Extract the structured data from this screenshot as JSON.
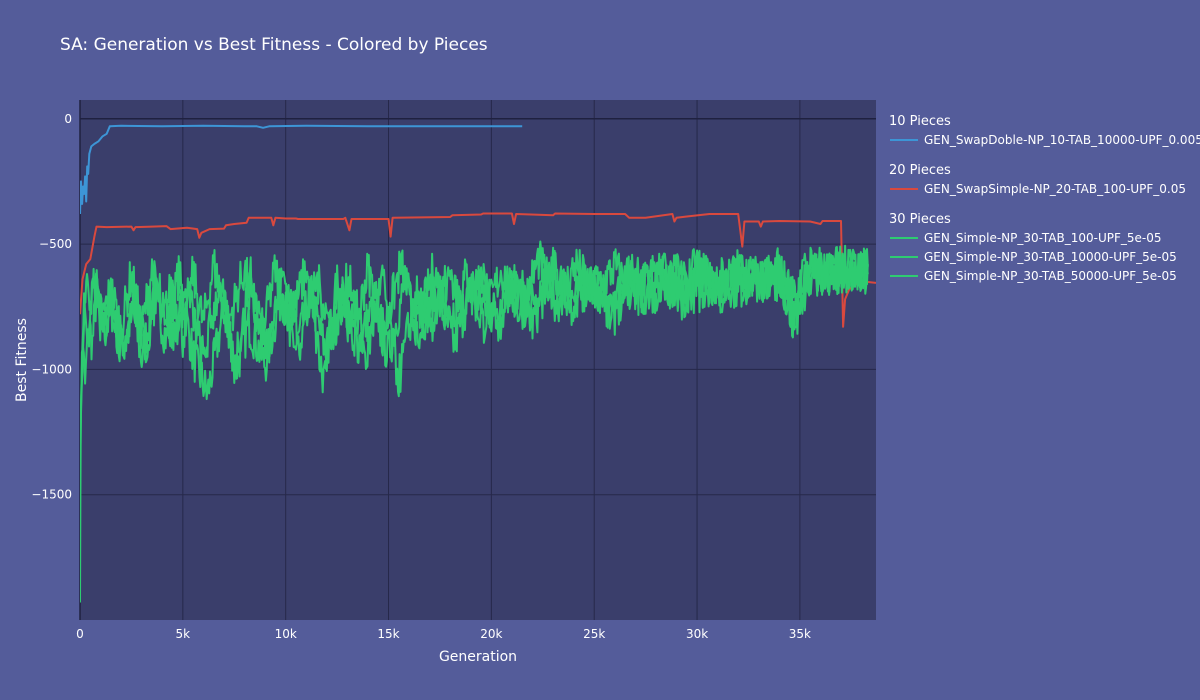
{
  "chart_data": {
    "type": "line",
    "title": "SA: Generation vs Best Fitness - Colored by Pieces",
    "xlabel": "Generation",
    "ylabel": "Best Fitness",
    "xlim": [
      0,
      38700
    ],
    "ylim": [
      -2000,
      75
    ],
    "x_ticks": [
      {
        "value": 0,
        "label": "0"
      },
      {
        "value": 5000,
        "label": "5k"
      },
      {
        "value": 10000,
        "label": "10k"
      },
      {
        "value": 15000,
        "label": "15k"
      },
      {
        "value": 20000,
        "label": "20k"
      },
      {
        "value": 25000,
        "label": "25k"
      },
      {
        "value": 30000,
        "label": "30k"
      },
      {
        "value": 35000,
        "label": "35k"
      }
    ],
    "y_ticks": [
      {
        "value": 0,
        "label": "0"
      },
      {
        "value": -500,
        "label": "−500"
      },
      {
        "value": -1000,
        "label": "−1000"
      },
      {
        "value": -1500,
        "label": "−1500"
      }
    ],
    "grid": true,
    "legend_position": "right",
    "legend_groups": [
      {
        "title": "10 Pieces",
        "items": [
          0
        ]
      },
      {
        "title": "20 Pieces",
        "items": [
          1
        ]
      },
      {
        "title": "30 Pieces",
        "items": [
          2,
          3,
          4
        ]
      }
    ],
    "series": [
      {
        "name": "GEN_SwapDoble-NP_10-TAB_10000-UPF_0.005",
        "color": "#3d95d6",
        "points": [
          [
            0,
            -380
          ],
          [
            50,
            -250
          ],
          [
            100,
            -340
          ],
          [
            150,
            -270
          ],
          [
            200,
            -300
          ],
          [
            250,
            -230
          ],
          [
            300,
            -330
          ],
          [
            350,
            -190
          ],
          [
            400,
            -220
          ],
          [
            450,
            -140
          ],
          [
            550,
            -110
          ],
          [
            700,
            -100
          ],
          [
            900,
            -90
          ],
          [
            1100,
            -70
          ],
          [
            1300,
            -60
          ],
          [
            1450,
            -30
          ],
          [
            2000,
            -28
          ],
          [
            4000,
            -30
          ],
          [
            6000,
            -28
          ],
          [
            8000,
            -30
          ],
          [
            8600,
            -30
          ],
          [
            8900,
            -36
          ],
          [
            9200,
            -30
          ],
          [
            11000,
            -28
          ],
          [
            14000,
            -30
          ],
          [
            17000,
            -30
          ],
          [
            20000,
            -30
          ],
          [
            21500,
            -30
          ]
        ]
      },
      {
        "name": "GEN_SwapSimple-NP_20-TAB_100-UPF_0.05",
        "color": "#d9493e",
        "points": [
          [
            0,
            -780
          ],
          [
            120,
            -640
          ],
          [
            300,
            -580
          ],
          [
            500,
            -560
          ],
          [
            700,
            -470
          ],
          [
            800,
            -430
          ],
          [
            1300,
            -432
          ],
          [
            2500,
            -430
          ],
          [
            2600,
            -445
          ],
          [
            2700,
            -432
          ],
          [
            3500,
            -430
          ],
          [
            4200,
            -428
          ],
          [
            4400,
            -440
          ],
          [
            5200,
            -435
          ],
          [
            5700,
            -440
          ],
          [
            5800,
            -475
          ],
          [
            5900,
            -455
          ],
          [
            6300,
            -440
          ],
          [
            7000,
            -438
          ],
          [
            7100,
            -425
          ],
          [
            7500,
            -420
          ],
          [
            8100,
            -415
          ],
          [
            8200,
            -395
          ],
          [
            9300,
            -395
          ],
          [
            9400,
            -425
          ],
          [
            9500,
            -395
          ],
          [
            10000,
            -398
          ],
          [
            10500,
            -398
          ],
          [
            10600,
            -400
          ],
          [
            12800,
            -400
          ],
          [
            12900,
            -395
          ],
          [
            13100,
            -445
          ],
          [
            13200,
            -400
          ],
          [
            15000,
            -400
          ],
          [
            15100,
            -470
          ],
          [
            15200,
            -395
          ],
          [
            18000,
            -392
          ],
          [
            18100,
            -385
          ],
          [
            19500,
            -382
          ],
          [
            19600,
            -378
          ],
          [
            21000,
            -378
          ],
          [
            21100,
            -420
          ],
          [
            21200,
            -380
          ],
          [
            23000,
            -385
          ],
          [
            23100,
            -378
          ],
          [
            25000,
            -380
          ],
          [
            26500,
            -380
          ],
          [
            26700,
            -395
          ],
          [
            27500,
            -395
          ],
          [
            28800,
            -380
          ],
          [
            28900,
            -410
          ],
          [
            29000,
            -395
          ],
          [
            29500,
            -390
          ],
          [
            30600,
            -380
          ],
          [
            31500,
            -380
          ],
          [
            32000,
            -380
          ],
          [
            32200,
            -510
          ],
          [
            32300,
            -410
          ],
          [
            33000,
            -410
          ],
          [
            33100,
            -430
          ],
          [
            33200,
            -410
          ],
          [
            34000,
            -408
          ],
          [
            35500,
            -410
          ],
          [
            36000,
            -420
          ],
          [
            36100,
            -408
          ],
          [
            37000,
            -408
          ],
          [
            37100,
            -830
          ],
          [
            37200,
            -720
          ],
          [
            37400,
            -680
          ],
          [
            37700,
            -660
          ],
          [
            38200,
            -650
          ],
          [
            38700,
            -655
          ]
        ]
      },
      {
        "name": "GEN_Simple-NP_30-TAB_100-UPF_5e-05",
        "color": "#2ecc71",
        "points": [
          [
            0,
            -1890
          ],
          [
            40,
            -1200
          ],
          [
            90,
            -950
          ],
          [
            150,
            -900
          ],
          [
            250,
            -1060
          ],
          [
            400,
            -800
          ],
          [
            600,
            -900
          ],
          [
            800,
            -700
          ],
          [
            1200,
            -850
          ],
          [
            1600,
            -760
          ],
          [
            2000,
            -900
          ],
          [
            2600,
            -780
          ],
          [
            3000,
            -960
          ],
          [
            3600,
            -700
          ],
          [
            4200,
            -880
          ],
          [
            4800,
            -620
          ],
          [
            5500,
            -950
          ],
          [
            6200,
            -1100
          ],
          [
            7000,
            -760
          ],
          [
            7600,
            -1000
          ],
          [
            8200,
            -820
          ],
          [
            9000,
            -980
          ],
          [
            9800,
            -700
          ],
          [
            10500,
            -920
          ],
          [
            11200,
            -700
          ],
          [
            12000,
            -950
          ],
          [
            12800,
            -700
          ],
          [
            13500,
            -900
          ],
          [
            14200,
            -760
          ],
          [
            15000,
            -940
          ],
          [
            15800,
            -660
          ],
          [
            16500,
            -840
          ],
          [
            17300,
            -700
          ],
          [
            18200,
            -900
          ],
          [
            19000,
            -680
          ],
          [
            20000,
            -780
          ],
          [
            21000,
            -640
          ],
          [
            22000,
            -820
          ],
          [
            23000,
            -600
          ],
          [
            24000,
            -720
          ],
          [
            25000,
            -650
          ],
          [
            26000,
            -800
          ],
          [
            27000,
            -600
          ],
          [
            28000,
            -700
          ],
          [
            29000,
            -620
          ],
          [
            30000,
            -700
          ],
          [
            31000,
            -630
          ],
          [
            32000,
            -680
          ],
          [
            33000,
            -620
          ],
          [
            34000,
            -640
          ],
          [
            34800,
            -760
          ],
          [
            35200,
            -620
          ],
          [
            36000,
            -600
          ],
          [
            37000,
            -610
          ],
          [
            38000,
            -600
          ],
          [
            38300,
            -580
          ]
        ]
      },
      {
        "name": "GEN_Simple-NP_30-TAB_10000-UPF_5e-05",
        "color": "#2ecc71",
        "points": [
          [
            0,
            -1500
          ],
          [
            60,
            -1100
          ],
          [
            120,
            -1000
          ],
          [
            300,
            -620
          ],
          [
            500,
            -760
          ],
          [
            700,
            -600
          ],
          [
            1000,
            -820
          ],
          [
            1500,
            -680
          ],
          [
            2000,
            -840
          ],
          [
            2500,
            -620
          ],
          [
            3000,
            -840
          ],
          [
            3500,
            -600
          ],
          [
            4000,
            -820
          ],
          [
            4500,
            -650
          ],
          [
            5000,
            -870
          ],
          [
            5500,
            -620
          ],
          [
            6000,
            -820
          ],
          [
            6500,
            -580
          ],
          [
            7200,
            -820
          ],
          [
            8000,
            -600
          ],
          [
            8800,
            -880
          ],
          [
            9500,
            -600
          ],
          [
            10200,
            -820
          ],
          [
            11000,
            -600
          ],
          [
            11800,
            -1050
          ],
          [
            12500,
            -650
          ],
          [
            13300,
            -880
          ],
          [
            14000,
            -600
          ],
          [
            14800,
            -850
          ],
          [
            15600,
            -580
          ],
          [
            16400,
            -840
          ],
          [
            17200,
            -600
          ],
          [
            18000,
            -800
          ],
          [
            18800,
            -620
          ],
          [
            19600,
            -820
          ],
          [
            20500,
            -600
          ],
          [
            21400,
            -780
          ],
          [
            22300,
            -560
          ],
          [
            23200,
            -740
          ],
          [
            24100,
            -580
          ],
          [
            25000,
            -700
          ],
          [
            26000,
            -590
          ],
          [
            27000,
            -720
          ],
          [
            28000,
            -600
          ],
          [
            29000,
            -700
          ],
          [
            30000,
            -590
          ],
          [
            31000,
            -680
          ],
          [
            32000,
            -600
          ],
          [
            33000,
            -650
          ],
          [
            34000,
            -610
          ],
          [
            34600,
            -700
          ],
          [
            35000,
            -800
          ],
          [
            35400,
            -600
          ],
          [
            36500,
            -620
          ],
          [
            37500,
            -600
          ],
          [
            38300,
            -620
          ]
        ]
      },
      {
        "name": "GEN_Simple-NP_30-TAB_50000-UPF_5e-05",
        "color": "#2ecc71",
        "points": [
          [
            0,
            -1300
          ],
          [
            80,
            -1050
          ],
          [
            200,
            -700
          ],
          [
            400,
            -920
          ],
          [
            700,
            -640
          ],
          [
            1100,
            -880
          ],
          [
            1500,
            -700
          ],
          [
            2000,
            -940
          ],
          [
            2600,
            -720
          ],
          [
            3200,
            -920
          ],
          [
            3800,
            -650
          ],
          [
            4500,
            -880
          ],
          [
            5200,
            -680
          ],
          [
            6000,
            -960
          ],
          [
            6800,
            -650
          ],
          [
            7500,
            -980
          ],
          [
            8300,
            -640
          ],
          [
            9100,
            -900
          ],
          [
            9900,
            -620
          ],
          [
            10700,
            -880
          ],
          [
            11500,
            -640
          ],
          [
            12300,
            -860
          ],
          [
            13100,
            -620
          ],
          [
            13900,
            -960
          ],
          [
            14700,
            -640
          ],
          [
            15500,
            -1040
          ],
          [
            16300,
            -700
          ],
          [
            17100,
            -820
          ],
          [
            17900,
            -640
          ],
          [
            18700,
            -780
          ],
          [
            19500,
            -620
          ],
          [
            20300,
            -820
          ],
          [
            21200,
            -640
          ],
          [
            22100,
            -760
          ],
          [
            23000,
            -600
          ],
          [
            23900,
            -740
          ],
          [
            24800,
            -640
          ],
          [
            25700,
            -760
          ],
          [
            26600,
            -620
          ],
          [
            27500,
            -740
          ],
          [
            28400,
            -620
          ],
          [
            29300,
            -720
          ],
          [
            30200,
            -610
          ],
          [
            31100,
            -700
          ],
          [
            32000,
            -620
          ],
          [
            33000,
            -660
          ],
          [
            34000,
            -600
          ],
          [
            34700,
            -820
          ],
          [
            35100,
            -640
          ],
          [
            36000,
            -620
          ],
          [
            37000,
            -590
          ],
          [
            38000,
            -600
          ],
          [
            38300,
            -590
          ]
        ]
      }
    ]
  }
}
